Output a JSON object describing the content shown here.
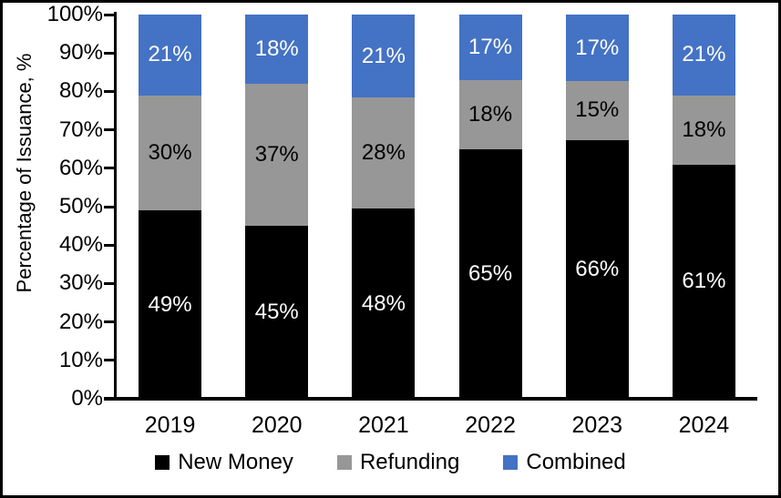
{
  "frame": {
    "background": "#ffffff",
    "border_color": "#000000"
  },
  "chart_data": {
    "type": "bar",
    "variant": "stacked-100-percent",
    "title": "",
    "xlabel": "",
    "ylabel": "Percentage of Issuance, %",
    "ylim": [
      0,
      100
    ],
    "ytick_labels": [
      "0%",
      "10%",
      "20%",
      "30%",
      "40%",
      "50%",
      "60%",
      "70%",
      "80%",
      "90%",
      "100%"
    ],
    "grid": false,
    "legend_position": "bottom",
    "value_suffix": "%",
    "categories": [
      "2019",
      "2020",
      "2021",
      "2022",
      "2023",
      "2024"
    ],
    "series": [
      {
        "name": "New Money",
        "color": "#000000",
        "label_color": "#ffffff",
        "values": [
          49,
          45,
          48,
          65,
          66,
          61
        ]
      },
      {
        "name": "Refunding",
        "color": "#979797",
        "label_color": "#000000",
        "values": [
          30,
          37,
          28,
          18,
          15,
          18
        ]
      },
      {
        "name": "Combined",
        "color": "#4472c4",
        "label_color": "#ffffff",
        "values": [
          21,
          18,
          21,
          17,
          17,
          21
        ]
      }
    ]
  }
}
